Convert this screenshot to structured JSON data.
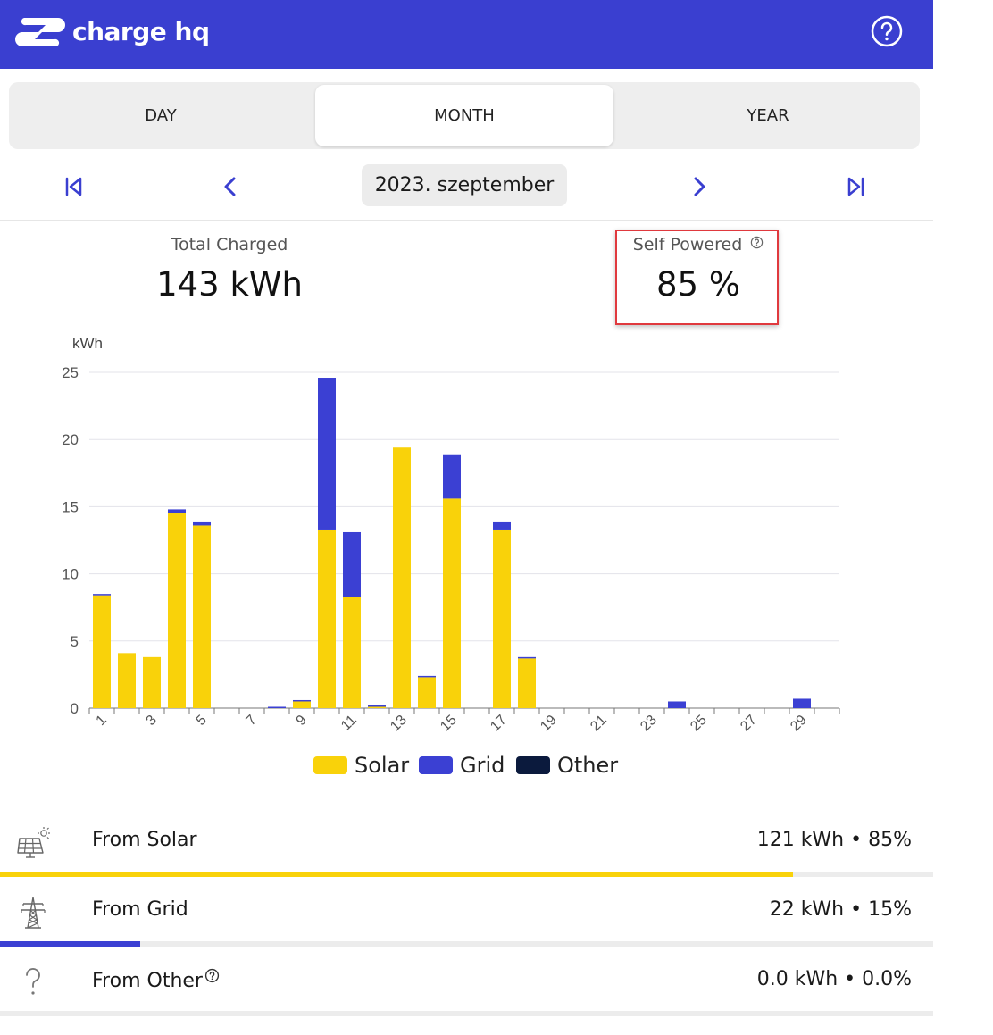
{
  "app": {
    "brand": "charge hq"
  },
  "tabs": [
    {
      "label": "DAY",
      "active": false
    },
    {
      "label": "MONTH",
      "active": true
    },
    {
      "label": "YEAR",
      "active": false
    }
  ],
  "period": {
    "label": "2023. szeptember"
  },
  "stats": {
    "total": {
      "label": "Total Charged",
      "value": "143 kWh"
    },
    "self": {
      "label": "Self Powered",
      "value": "85 %"
    }
  },
  "colors": {
    "header": "#3a3fd0",
    "solar": "#f9d20a",
    "grid": "#3b40d3",
    "other": "#0b1a3d",
    "highlight": "#e0393e"
  },
  "chart_data": {
    "type": "bar",
    "stacked": true,
    "ylabel": "kWh",
    "ylim": [
      0,
      25
    ],
    "yticks": [
      "0",
      "5",
      "10",
      "15",
      "20",
      "25"
    ],
    "xtick_labels": [
      "1",
      "3",
      "5",
      "7",
      "9",
      "11",
      "13",
      "15",
      "17",
      "19",
      "21",
      "23",
      "25",
      "27",
      "29"
    ],
    "categories": [
      "1",
      "2",
      "3",
      "4",
      "5",
      "6",
      "7",
      "8",
      "9",
      "10",
      "11",
      "12",
      "13",
      "14",
      "15",
      "16",
      "17",
      "18",
      "19",
      "20",
      "21",
      "22",
      "23",
      "24",
      "25",
      "26",
      "27",
      "28",
      "29",
      "30"
    ],
    "series": [
      {
        "name": "Solar",
        "color": "#f9d20a",
        "values": [
          8.4,
          4.1,
          3.8,
          14.5,
          13.6,
          0,
          0,
          0,
          0.5,
          13.3,
          8.3,
          0.1,
          19.4,
          2.3,
          15.6,
          0,
          13.3,
          3.7,
          0,
          0,
          0,
          0,
          0,
          0,
          0,
          0,
          0,
          0,
          0,
          0
        ]
      },
      {
        "name": "Grid",
        "color": "#3b40d3",
        "values": [
          0.1,
          0,
          0,
          0.3,
          0.3,
          0,
          0,
          0.1,
          0.1,
          11.3,
          4.8,
          0.1,
          0,
          0.1,
          3.3,
          0,
          0.6,
          0.1,
          0,
          0,
          0,
          0,
          0,
          0.5,
          0,
          0,
          0,
          0,
          0.7,
          0
        ]
      },
      {
        "name": "Other",
        "color": "#0b1a3d",
        "values": [
          0,
          0,
          0,
          0,
          0,
          0,
          0,
          0,
          0,
          0,
          0,
          0,
          0,
          0,
          0,
          0,
          0,
          0,
          0,
          0,
          0,
          0,
          0,
          0,
          0,
          0,
          0,
          0,
          0,
          0
        ]
      }
    ],
    "grid": true,
    "legend": "bottom-center"
  },
  "breakdown": [
    {
      "label": "From Solar",
      "value": "121 kWh • 85%",
      "fraction": 0.85,
      "icon": "solar-panel-icon"
    },
    {
      "label": "From Grid",
      "value": "22 kWh • 15%",
      "fraction": 0.15,
      "icon": "power-pylon-icon"
    },
    {
      "label": "From Other",
      "value": "0.0 kWh • 0.0%",
      "fraction": 0.0,
      "icon": "question-icon"
    }
  ]
}
